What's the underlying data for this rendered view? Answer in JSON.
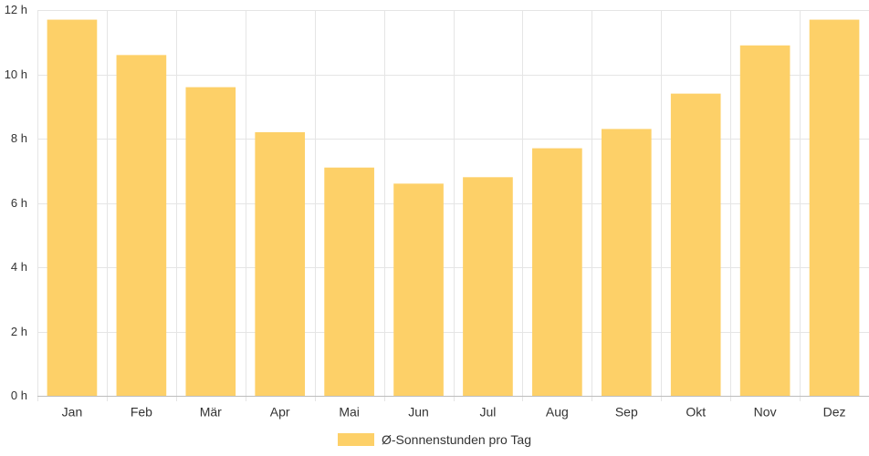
{
  "chart_data": {
    "type": "bar",
    "categories": [
      "Jan",
      "Feb",
      "Mär",
      "Apr",
      "Mai",
      "Jun",
      "Jul",
      "Aug",
      "Sep",
      "Okt",
      "Nov",
      "Dez"
    ],
    "series": [
      {
        "name": "Ø-Sonnenstunden pro Tag",
        "values": [
          11.7,
          10.6,
          9.6,
          8.2,
          7.1,
          6.6,
          6.8,
          7.7,
          8.3,
          9.4,
          10.9,
          11.7
        ]
      }
    ],
    "ylim": [
      0,
      12
    ],
    "y_ticks": [
      "0 h",
      "2 h",
      "4 h",
      "6 h",
      "8 h",
      "10 h",
      "12 h"
    ],
    "y_tick_values": [
      0,
      2,
      4,
      6,
      8,
      10,
      12
    ],
    "grid": true,
    "legend_position": "bottom",
    "colors": {
      "bar": "#fdd068",
      "grid": "#e5e5e5",
      "axis": "#bdbdbd",
      "text": "#333333"
    }
  }
}
